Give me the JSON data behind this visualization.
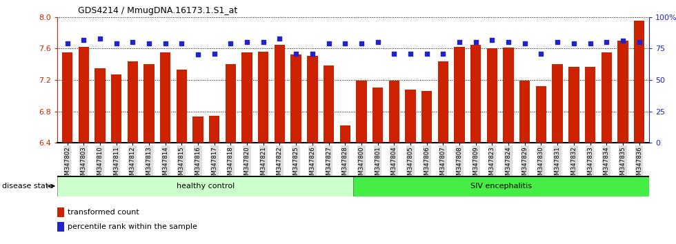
{
  "title": "GDS4214 / MmugDNA.16173.1.S1_at",
  "samples": [
    "GSM347802",
    "GSM347803",
    "GSM347810",
    "GSM347811",
    "GSM347812",
    "GSM347813",
    "GSM347814",
    "GSM347815",
    "GSM347816",
    "GSM347817",
    "GSM347818",
    "GSM347820",
    "GSM347821",
    "GSM347822",
    "GSM347825",
    "GSM347826",
    "GSM347827",
    "GSM347828",
    "GSM347800",
    "GSM347801",
    "GSM347804",
    "GSM347805",
    "GSM347806",
    "GSM347807",
    "GSM347808",
    "GSM347809",
    "GSM347823",
    "GSM347824",
    "GSM347829",
    "GSM347830",
    "GSM347831",
    "GSM347832",
    "GSM347833",
    "GSM347834",
    "GSM347835",
    "GSM347836"
  ],
  "bar_values": [
    7.55,
    7.62,
    7.35,
    7.27,
    7.44,
    7.4,
    7.55,
    7.33,
    6.73,
    6.74,
    7.4,
    7.55,
    7.56,
    7.65,
    7.52,
    7.51,
    7.38,
    6.62,
    7.19,
    7.1,
    7.19,
    7.08,
    7.06,
    7.44,
    7.62,
    7.65,
    7.6,
    7.61,
    7.19,
    7.12,
    7.4,
    7.37,
    7.37,
    7.55,
    7.7,
    7.95
  ],
  "percentile_values": [
    79,
    82,
    83,
    79,
    80,
    79,
    79,
    79,
    70,
    71,
    79,
    80,
    80,
    83,
    71,
    71,
    79,
    79,
    79,
    80,
    71,
    71,
    71,
    71,
    80,
    80,
    82,
    80,
    79,
    71,
    80,
    79,
    79,
    80,
    81,
    80
  ],
  "healthy_control_count": 18,
  "bar_color": "#CC2200",
  "dot_color": "#2222CC",
  "ylim_left": [
    6.4,
    8.0
  ],
  "ylim_right": [
    0,
    100
  ],
  "yticks_left": [
    6.4,
    6.8,
    7.2,
    7.6,
    8.0
  ],
  "yticks_right": [
    0,
    25,
    50,
    75,
    100
  ],
  "bar_bottom": 6.4,
  "healthy_label": "healthy control",
  "siv_label": "SIV encephalitis",
  "disease_state_label": "disease state",
  "legend_bar_label": "transformed count",
  "legend_dot_label": "percentile rank within the sample",
  "healthy_color": "#CCFFCC",
  "siv_color": "#44EE44",
  "tick_bg_color": "#DDDDDD"
}
